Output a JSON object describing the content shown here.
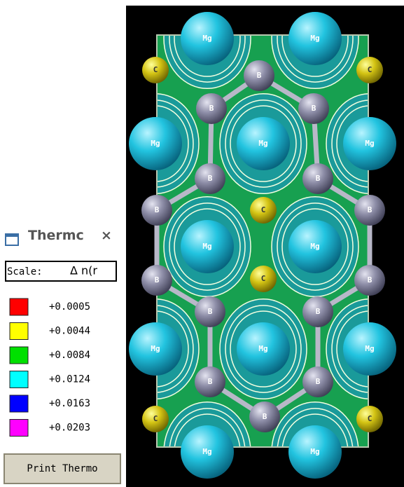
{
  "panel": {
    "title": "Thermc",
    "close": "×",
    "scale_label": "Scale:",
    "scale_value": "Δ n(r",
    "legend": [
      {
        "label": "+0.0005",
        "color": "#ff0000"
      },
      {
        "label": "+0.0044",
        "color": "#ffff00"
      },
      {
        "label": "+0.0084",
        "color": "#00e000"
      },
      {
        "label": "+0.0124",
        "color": "#00ffff"
      },
      {
        "label": "+0.0163",
        "color": "#0000ff"
      },
      {
        "label": "+0.0203",
        "color": "#ff00ff"
      }
    ],
    "button": "Print Thermo"
  },
  "structure": {
    "atoms": [
      {
        "label": "Mg"
      },
      {
        "label": "Mg"
      },
      {
        "label": "Mg"
      },
      {
        "label": "Mg"
      },
      {
        "label": "Mg"
      },
      {
        "label": "Mg"
      },
      {
        "label": "Mg"
      },
      {
        "label": "Mg"
      },
      {
        "label": "Mg"
      },
      {
        "label": "Mg"
      },
      {
        "label": "Mg"
      },
      {
        "label": "Mg"
      },
      {
        "label": "B"
      },
      {
        "label": "B"
      },
      {
        "label": "B"
      },
      {
        "label": "B"
      },
      {
        "label": "B"
      },
      {
        "label": "B"
      },
      {
        "label": "B"
      },
      {
        "label": "B"
      },
      {
        "label": "B"
      },
      {
        "label": "B"
      },
      {
        "label": "B"
      },
      {
        "label": "B"
      },
      {
        "label": "B"
      },
      {
        "label": "B"
      },
      {
        "label": "C"
      },
      {
        "label": "C"
      },
      {
        "label": "C"
      },
      {
        "label": "C"
      },
      {
        "label": "C"
      },
      {
        "label": "C"
      }
    ]
  }
}
